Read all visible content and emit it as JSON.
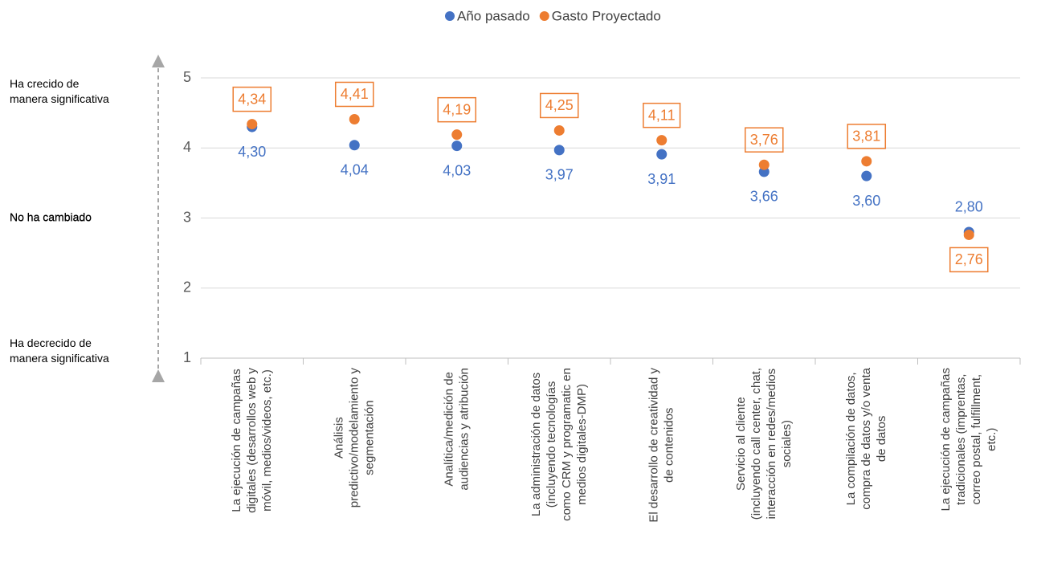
{
  "chart_data": {
    "type": "dot",
    "categories": [
      "La ejecución de campañas\ndigitales (desarrollos web y\nmóvil, medios/videos, etc.)",
      "Análisis\npredictivo/modelamiento y\nsegmentación",
      "Analítica/medición de\naudiencias y atribución",
      "La administración de datos\n(incluyendo tecnologías\ncomo CRM y programatic en\nmedios digitales-DMP)",
      "El desarrollo de creatividad y\nde contenidos",
      "Servicio al cliente\n(incluyendo call center, chat,\ninteracción en redes/medios\nsociales)",
      "La compilación de datos,\ncompra de datos y/o venta\nde datos",
      "La ejecución de campañas\ntradicionales (imprentas,\ncorreo postal, fulfillment,\netc.)"
    ],
    "series": [
      {
        "name": "Año pasado",
        "color": "#4472c4",
        "values": [
          4.3,
          4.04,
          4.03,
          3.97,
          3.91,
          3.66,
          3.6,
          2.8
        ],
        "value_labels": [
          "4,30",
          "4,04",
          "4,03",
          "3,97",
          "3,91",
          "3,66",
          "3,60",
          "2,80"
        ]
      },
      {
        "name": "Gasto Proyectado",
        "color": "#ed7d31",
        "values": [
          4.34,
          4.41,
          4.19,
          4.25,
          4.11,
          3.76,
          3.81,
          2.76
        ],
        "value_labels": [
          "4,34",
          "4,41",
          "4,19",
          "4,25",
          "4,11",
          "3,76",
          "3,81",
          "2,76"
        ]
      }
    ],
    "ylim": [
      1,
      5
    ],
    "yticks": [
      1,
      2,
      3,
      4,
      5
    ],
    "grid": true,
    "legend": "top",
    "annotations": [
      {
        "text": "Ha crecido de\nmanera significativa",
        "y": 4.8
      },
      {
        "text": "No ha cambiado",
        "y": 3
      },
      {
        "text": "Ha decrecido de\nmanera significativa",
        "y": 1.1
      }
    ]
  }
}
